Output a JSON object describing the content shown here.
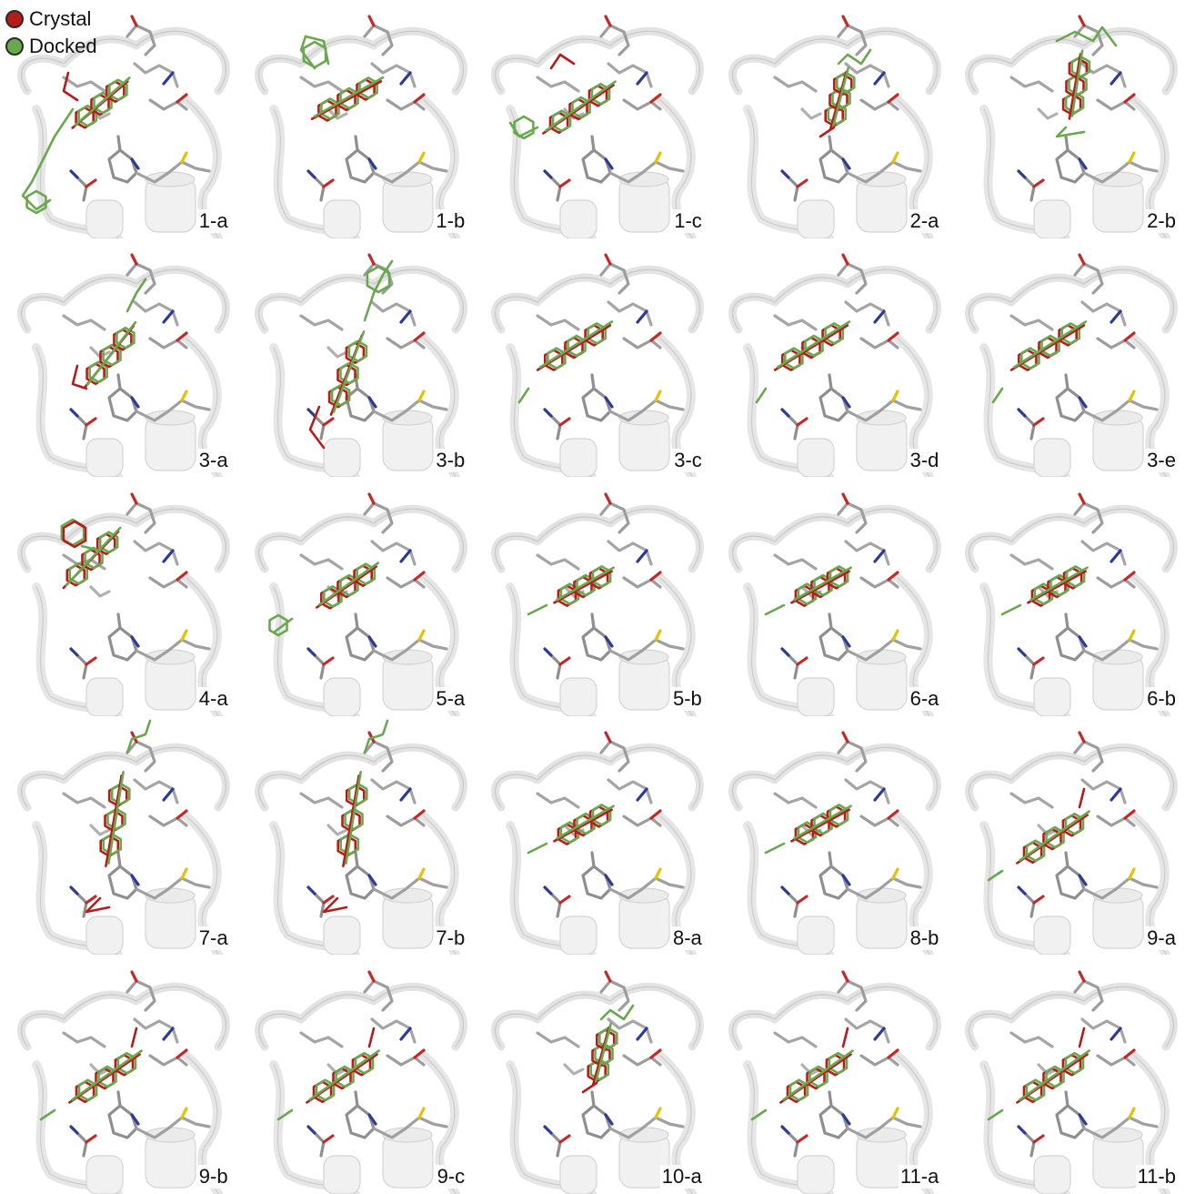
{
  "legend": [
    {
      "label": "Crystal",
      "color": "#b71c1c"
    },
    {
      "label": "Docked",
      "color": "#6aa84f"
    }
  ],
  "colors": {
    "crystal": "#b71c1c",
    "docked": "#6aa84f",
    "protein": "#d9d9d9",
    "residue": "#9a9a9a",
    "nitrogen": "#2b3a9c",
    "oxygen": "#c62828",
    "sulfur": "#e6c200"
  },
  "panels": [
    {
      "label": "1-a",
      "pose": 0
    },
    {
      "label": "1-b",
      "pose": 1
    },
    {
      "label": "1-c",
      "pose": 2
    },
    {
      "label": "2-a",
      "pose": 3
    },
    {
      "label": "2-b",
      "pose": 4
    },
    {
      "label": "3-a",
      "pose": 5
    },
    {
      "label": "3-b",
      "pose": 6
    },
    {
      "label": "3-c",
      "pose": 7
    },
    {
      "label": "3-d",
      "pose": 7
    },
    {
      "label": "3-e",
      "pose": 7
    },
    {
      "label": "4-a",
      "pose": 8
    },
    {
      "label": "5-a",
      "pose": 9
    },
    {
      "label": "5-b",
      "pose": 10
    },
    {
      "label": "6-a",
      "pose": 10
    },
    {
      "label": "6-b",
      "pose": 10
    },
    {
      "label": "7-a",
      "pose": 11
    },
    {
      "label": "7-b",
      "pose": 11
    },
    {
      "label": "8-a",
      "pose": 10
    },
    {
      "label": "8-b",
      "pose": 10
    },
    {
      "label": "9-a",
      "pose": 12
    },
    {
      "label": "9-b",
      "pose": 12
    },
    {
      "label": "9-c",
      "pose": 12
    },
    {
      "label": "10-a",
      "pose": 3
    },
    {
      "label": "11-a",
      "pose": 12
    },
    {
      "label": "11-b",
      "pose": 12
    }
  ]
}
